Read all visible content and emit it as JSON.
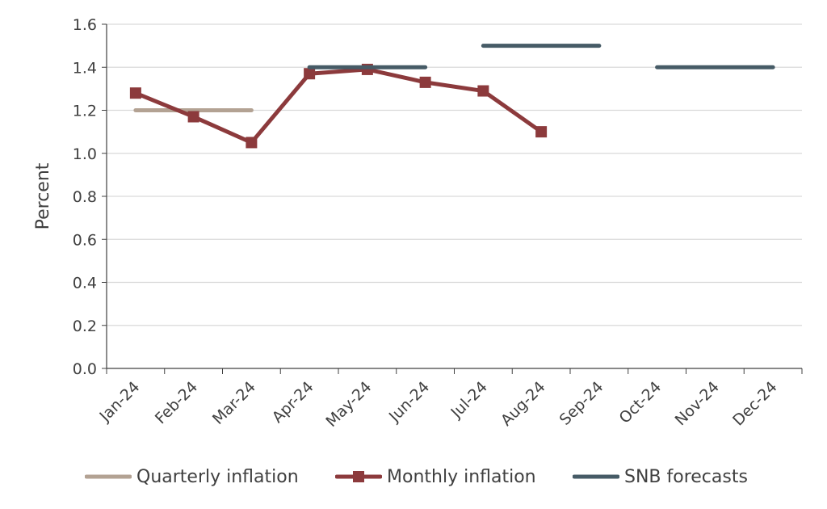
{
  "chart_data": {
    "type": "line",
    "title": "",
    "ylabel": "Percent",
    "xlabel": "",
    "ylim": [
      0,
      1.6
    ],
    "yticks": [
      "0.0",
      "0.2",
      "0.4",
      "0.6",
      "0.8",
      "1.0",
      "1.2",
      "1.4",
      "1.6"
    ],
    "categories": [
      "Jan-24",
      "Feb-24",
      "Mar-24",
      "Apr-24",
      "May-24",
      "Jun-24",
      "Jul-24",
      "Aug-24",
      "Sep-24",
      "Oct-24",
      "Nov-24",
      "Dec-24"
    ],
    "grid": "horizontal",
    "legend_position": "bottom",
    "series": [
      {
        "name": "Quarterly inflation",
        "style": "step",
        "color": "#b3a293",
        "segments": [
          {
            "from": "Jan-24",
            "to": "Mar-24",
            "value": 1.2
          }
        ]
      },
      {
        "name": "Monthly inflation",
        "style": "line-marker",
        "color": "#8c3a3c",
        "values": [
          1.28,
          1.17,
          1.05,
          1.37,
          1.39,
          1.33,
          1.29,
          1.1,
          null,
          null,
          null,
          null
        ]
      },
      {
        "name": "SNB forecasts",
        "style": "step",
        "color": "#465b66",
        "segments": [
          {
            "from": "Apr-24",
            "to": "Jun-24",
            "value": 1.4
          },
          {
            "from": "Jul-24",
            "to": "Sep-24",
            "value": 1.5
          },
          {
            "from": "Oct-24",
            "to": "Dec-24",
            "value": 1.4
          }
        ]
      }
    ]
  }
}
